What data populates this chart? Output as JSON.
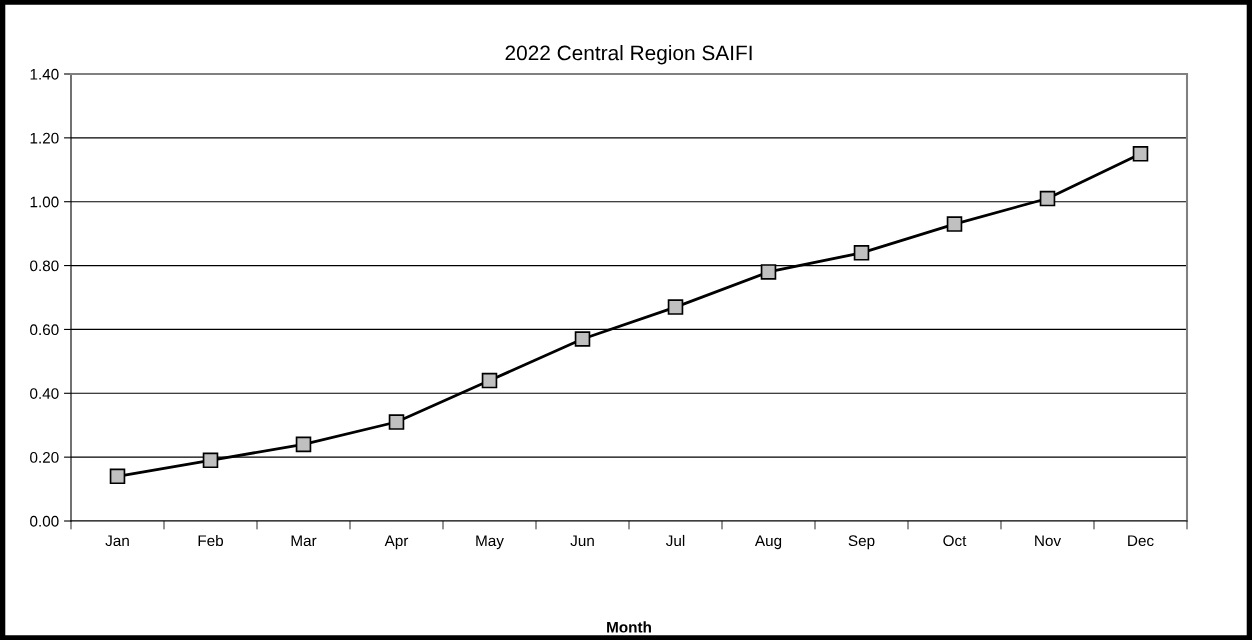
{
  "chart_data": {
    "type": "line",
    "title": "2022 Central Region SAIFI",
    "xlabel": "Month",
    "categories": [
      "Jan",
      "Feb",
      "Mar",
      "Apr",
      "May",
      "Jun",
      "Jul",
      "Aug",
      "Sep",
      "Oct",
      "Nov",
      "Dec"
    ],
    "series": [
      {
        "color": "#000000",
        "values": [
          0.14,
          0.19,
          0.24,
          0.31,
          0.44,
          0.57,
          0.67,
          0.78,
          0.84,
          0.93,
          1.01,
          1.15
        ]
      }
    ],
    "ylim": [
      0,
      1.4
    ],
    "yticks": [
      {
        "value": 0,
        "label": "0.00"
      },
      {
        "value": 0.2,
        "label": "0.20"
      },
      {
        "value": 0.4,
        "label": "0.40"
      },
      {
        "value": 0.6,
        "label": "0.60"
      },
      {
        "value": 0.8,
        "label": "0.80"
      },
      {
        "value": 1.0,
        "label": "1.00"
      },
      {
        "value": 1.2,
        "label": "1.20"
      },
      {
        "value": 1.4,
        "label": "1.40"
      }
    ],
    "grid": "y",
    "marker": "square",
    "line_style": "solid"
  }
}
